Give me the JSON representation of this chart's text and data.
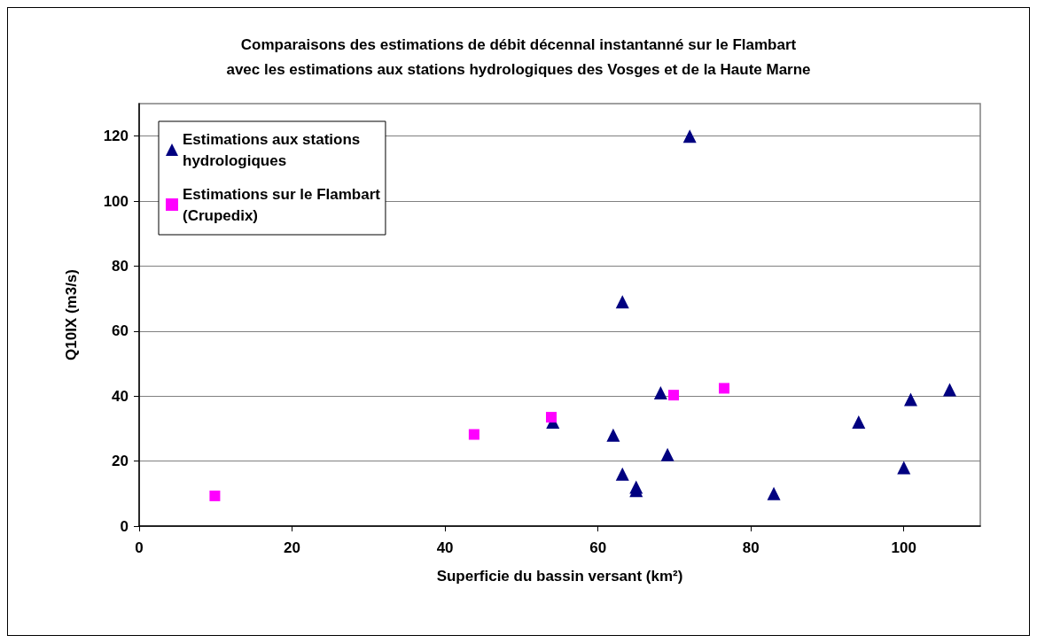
{
  "chart_data": {
    "type": "scatter",
    "title": "Comparaisons des estimations de débit décennal instantanné sur le Flambart\navec les estimations aux stations hydrologiques des Vosges et de la Haute Marne",
    "xlabel": "Superficie du bassin versant (km²)",
    "ylabel": "Q10IX (m3/s)",
    "series": [
      {
        "name": "Estimations aux stations\nhydrologiques",
        "color": "#000080",
        "marker": "triangle",
        "x": [
          72,
          63.2,
          68.2,
          54.1,
          62,
          69.1,
          63.2,
          65,
          65,
          83,
          94.1,
          100,
          100.9,
          106
        ],
        "values": [
          120,
          69,
          41,
          32,
          28,
          22,
          16,
          12,
          11,
          10,
          32,
          18,
          39,
          42
        ]
      },
      {
        "name": "Estimations sur le Flambart\n(Crupedix)",
        "color": "#ff00ff",
        "marker": "square",
        "x": [
          9.9,
          43.8,
          53.9,
          69.9,
          76.5
        ],
        "values": [
          9.3,
          28.2,
          33.5,
          40.3,
          42.4
        ]
      }
    ],
    "xlim": [
      0,
      110
    ],
    "xticks": [
      0,
      20,
      40,
      60,
      80,
      100
    ],
    "ylim": [
      0,
      130
    ],
    "yticks": [
      0,
      20,
      40,
      60,
      80,
      100,
      120
    ],
    "grid": "y",
    "legend": "top left"
  }
}
